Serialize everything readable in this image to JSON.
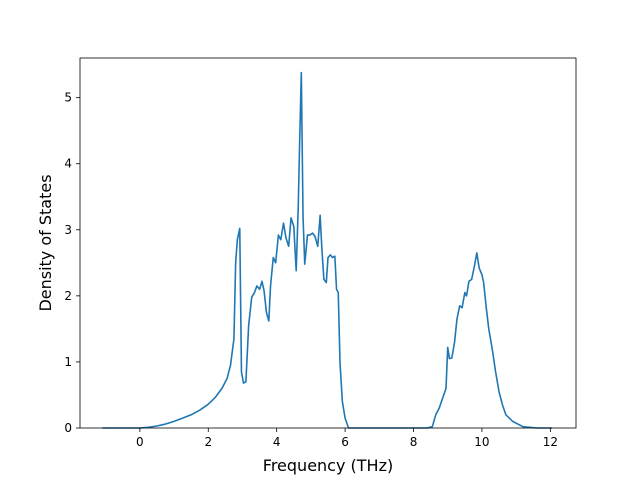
{
  "chart_data": {
    "type": "line",
    "title": "",
    "xlabel": "Frequency (THz)",
    "ylabel": "Density of States",
    "xlim": [
      -1.75,
      12.75
    ],
    "ylim": [
      0,
      5.6
    ],
    "xticks": [
      0,
      2,
      4,
      6,
      8,
      10,
      12
    ],
    "yticks": [
      0,
      1,
      2,
      3,
      4,
      5
    ],
    "grid": false,
    "line_color": "#1f77b4",
    "series": [
      {
        "x": [
          -1.1,
          -0.5,
          0.0,
          0.25,
          0.5,
          0.75,
          1.0,
          1.25,
          1.5,
          1.75,
          2.0,
          2.2,
          2.4,
          2.55,
          2.65,
          2.75,
          2.8,
          2.85,
          2.92,
          2.97,
          3.03,
          3.1,
          3.18,
          3.27,
          3.35,
          3.42,
          3.5,
          3.57,
          3.63,
          3.7,
          3.77,
          3.82,
          3.9,
          3.97,
          4.05,
          4.12,
          4.2,
          4.27,
          4.35,
          4.42,
          4.5,
          4.57,
          4.63,
          4.67,
          4.72,
          4.77,
          4.82,
          4.9,
          4.97,
          5.05,
          5.12,
          5.2,
          5.27,
          5.32,
          5.38,
          5.45,
          5.5,
          5.57,
          5.63,
          5.7,
          5.75,
          5.8,
          5.85,
          5.92,
          6.0,
          6.1,
          6.4,
          7.0,
          7.5,
          8.0,
          8.4,
          8.55,
          8.65,
          8.75,
          8.85,
          8.95,
          9.0,
          9.05,
          9.12,
          9.2,
          9.27,
          9.35,
          9.42,
          9.5,
          9.55,
          9.62,
          9.7,
          9.78,
          9.85,
          9.92,
          10.0,
          10.05,
          10.12,
          10.2,
          10.3,
          10.4,
          10.5,
          10.6,
          10.7,
          10.8,
          10.9,
          11.2,
          11.6,
          12.05
        ],
        "y": [
          0,
          0,
          0,
          0.01,
          0.03,
          0.06,
          0.1,
          0.15,
          0.2,
          0.27,
          0.36,
          0.46,
          0.6,
          0.75,
          0.95,
          1.35,
          2.5,
          2.85,
          3.02,
          0.85,
          0.68,
          0.7,
          1.55,
          1.98,
          2.05,
          2.15,
          2.1,
          2.22,
          2.08,
          1.75,
          1.62,
          2.15,
          2.58,
          2.5,
          2.92,
          2.85,
          3.1,
          2.88,
          2.75,
          3.18,
          3.05,
          2.38,
          3.35,
          4.3,
          5.38,
          3.2,
          2.48,
          2.92,
          2.92,
          2.95,
          2.9,
          2.75,
          3.22,
          2.72,
          2.25,
          2.2,
          2.58,
          2.62,
          2.58,
          2.6,
          2.1,
          2.05,
          1.0,
          0.4,
          0.15,
          0.0,
          0,
          0,
          0,
          0,
          0,
          0.02,
          0.2,
          0.3,
          0.45,
          0.6,
          1.22,
          1.05,
          1.06,
          1.3,
          1.65,
          1.85,
          1.82,
          2.05,
          2.0,
          2.22,
          2.25,
          2.45,
          2.65,
          2.42,
          2.32,
          2.2,
          1.85,
          1.5,
          1.2,
          0.85,
          0.55,
          0.35,
          0.2,
          0.15,
          0.1,
          0.02,
          0,
          0
        ]
      }
    ]
  }
}
